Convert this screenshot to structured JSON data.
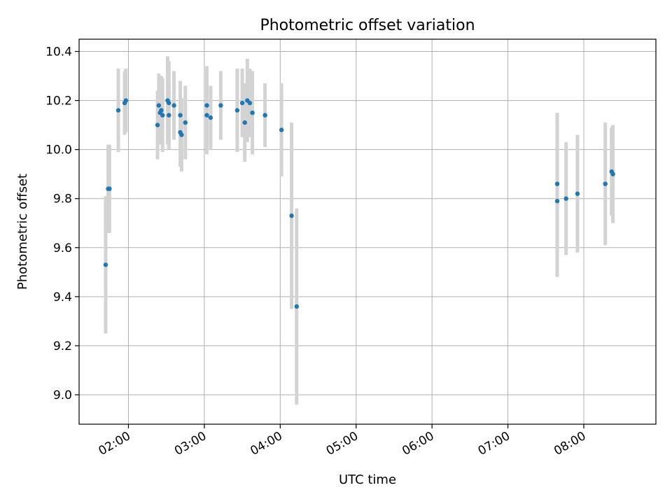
{
  "chart_data": {
    "type": "scatter",
    "title": "Photometric offset variation",
    "xlabel": "UTC time",
    "ylabel": "Photometric offset",
    "x_unit": "UTC time (HH:MM)",
    "xlim": [
      "01:21",
      "08:57"
    ],
    "ylim": [
      8.88,
      10.45
    ],
    "x_ticks": [
      "02:00",
      "03:00",
      "04:00",
      "05:00",
      "06:00",
      "07:00",
      "08:00"
    ],
    "y_ticks": [
      9.0,
      9.2,
      9.4,
      9.6,
      9.8,
      10.0,
      10.2,
      10.4
    ],
    "y_tick_labels": [
      "9.0",
      "9.2",
      "9.4",
      "9.6",
      "9.8",
      "10.0",
      "10.2",
      "10.4"
    ],
    "grid": true,
    "colors": {
      "point": "#1f77b4",
      "errorbar": "#d3d3d3",
      "grid": "#b0b0b0"
    },
    "series": [
      {
        "marker": "dot",
        "points": [
          {
            "x": "01:42",
            "y": 9.53,
            "err": 0.28
          },
          {
            "x": "01:44",
            "y": 9.84,
            "err": 0.18
          },
          {
            "x": "01:45",
            "y": 9.84,
            "err": 0.18
          },
          {
            "x": "01:52",
            "y": 10.16,
            "err": 0.17
          },
          {
            "x": "01:57",
            "y": 10.19,
            "err": 0.13
          },
          {
            "x": "01:58",
            "y": 10.2,
            "err": 0.13
          },
          {
            "x": "02:23",
            "y": 10.1,
            "err": 0.14
          },
          {
            "x": "02:24",
            "y": 10.18,
            "err": 0.13
          },
          {
            "x": "02:25",
            "y": 10.15,
            "err": 0.13
          },
          {
            "x": "02:26",
            "y": 10.16,
            "err": 0.14
          },
          {
            "x": "02:27",
            "y": 10.14,
            "err": 0.15
          },
          {
            "x": "02:31",
            "y": 10.2,
            "err": 0.18
          },
          {
            "x": "02:32",
            "y": 10.19,
            "err": 0.17
          },
          {
            "x": "02:32",
            "y": 10.14,
            "err": 0.14
          },
          {
            "x": "02:36",
            "y": 10.18,
            "err": 0.14
          },
          {
            "x": "02:41",
            "y": 10.14,
            "err": 0.14
          },
          {
            "x": "02:41",
            "y": 10.07,
            "err": 0.14
          },
          {
            "x": "02:42",
            "y": 10.06,
            "err": 0.15
          },
          {
            "x": "02:45",
            "y": 10.11,
            "err": 0.15
          },
          {
            "x": "03:02",
            "y": 10.14,
            "err": 0.16
          },
          {
            "x": "03:02",
            "y": 10.18,
            "err": 0.16
          },
          {
            "x": "03:05",
            "y": 10.13,
            "err": 0.13
          },
          {
            "x": "03:13",
            "y": 10.18,
            "err": 0.14
          },
          {
            "x": "03:26",
            "y": 10.16,
            "err": 0.17
          },
          {
            "x": "03:30",
            "y": 10.19,
            "err": 0.14
          },
          {
            "x": "03:32",
            "y": 10.11,
            "err": 0.16
          },
          {
            "x": "03:34",
            "y": 10.2,
            "err": 0.17
          },
          {
            "x": "03:36",
            "y": 10.19,
            "err": 0.14
          },
          {
            "x": "03:38",
            "y": 10.15,
            "err": 0.17
          },
          {
            "x": "03:48",
            "y": 10.14,
            "err": 0.13
          },
          {
            "x": "04:01",
            "y": 10.08,
            "err": 0.19
          },
          {
            "x": "04:09",
            "y": 9.73,
            "err": 0.38
          },
          {
            "x": "04:13",
            "y": 9.36,
            "err": 0.4
          },
          {
            "x": "07:39",
            "y": 9.86,
            "err": 0.29
          },
          {
            "x": "07:39",
            "y": 9.79,
            "err": 0.31
          },
          {
            "x": "07:46",
            "y": 9.8,
            "err": 0.23
          },
          {
            "x": "07:55",
            "y": 9.82,
            "err": 0.24
          },
          {
            "x": "08:17",
            "y": 9.86,
            "err": 0.25
          },
          {
            "x": "08:22",
            "y": 9.91,
            "err": 0.18
          },
          {
            "x": "08:23",
            "y": 9.9,
            "err": 0.2
          }
        ]
      }
    ]
  }
}
